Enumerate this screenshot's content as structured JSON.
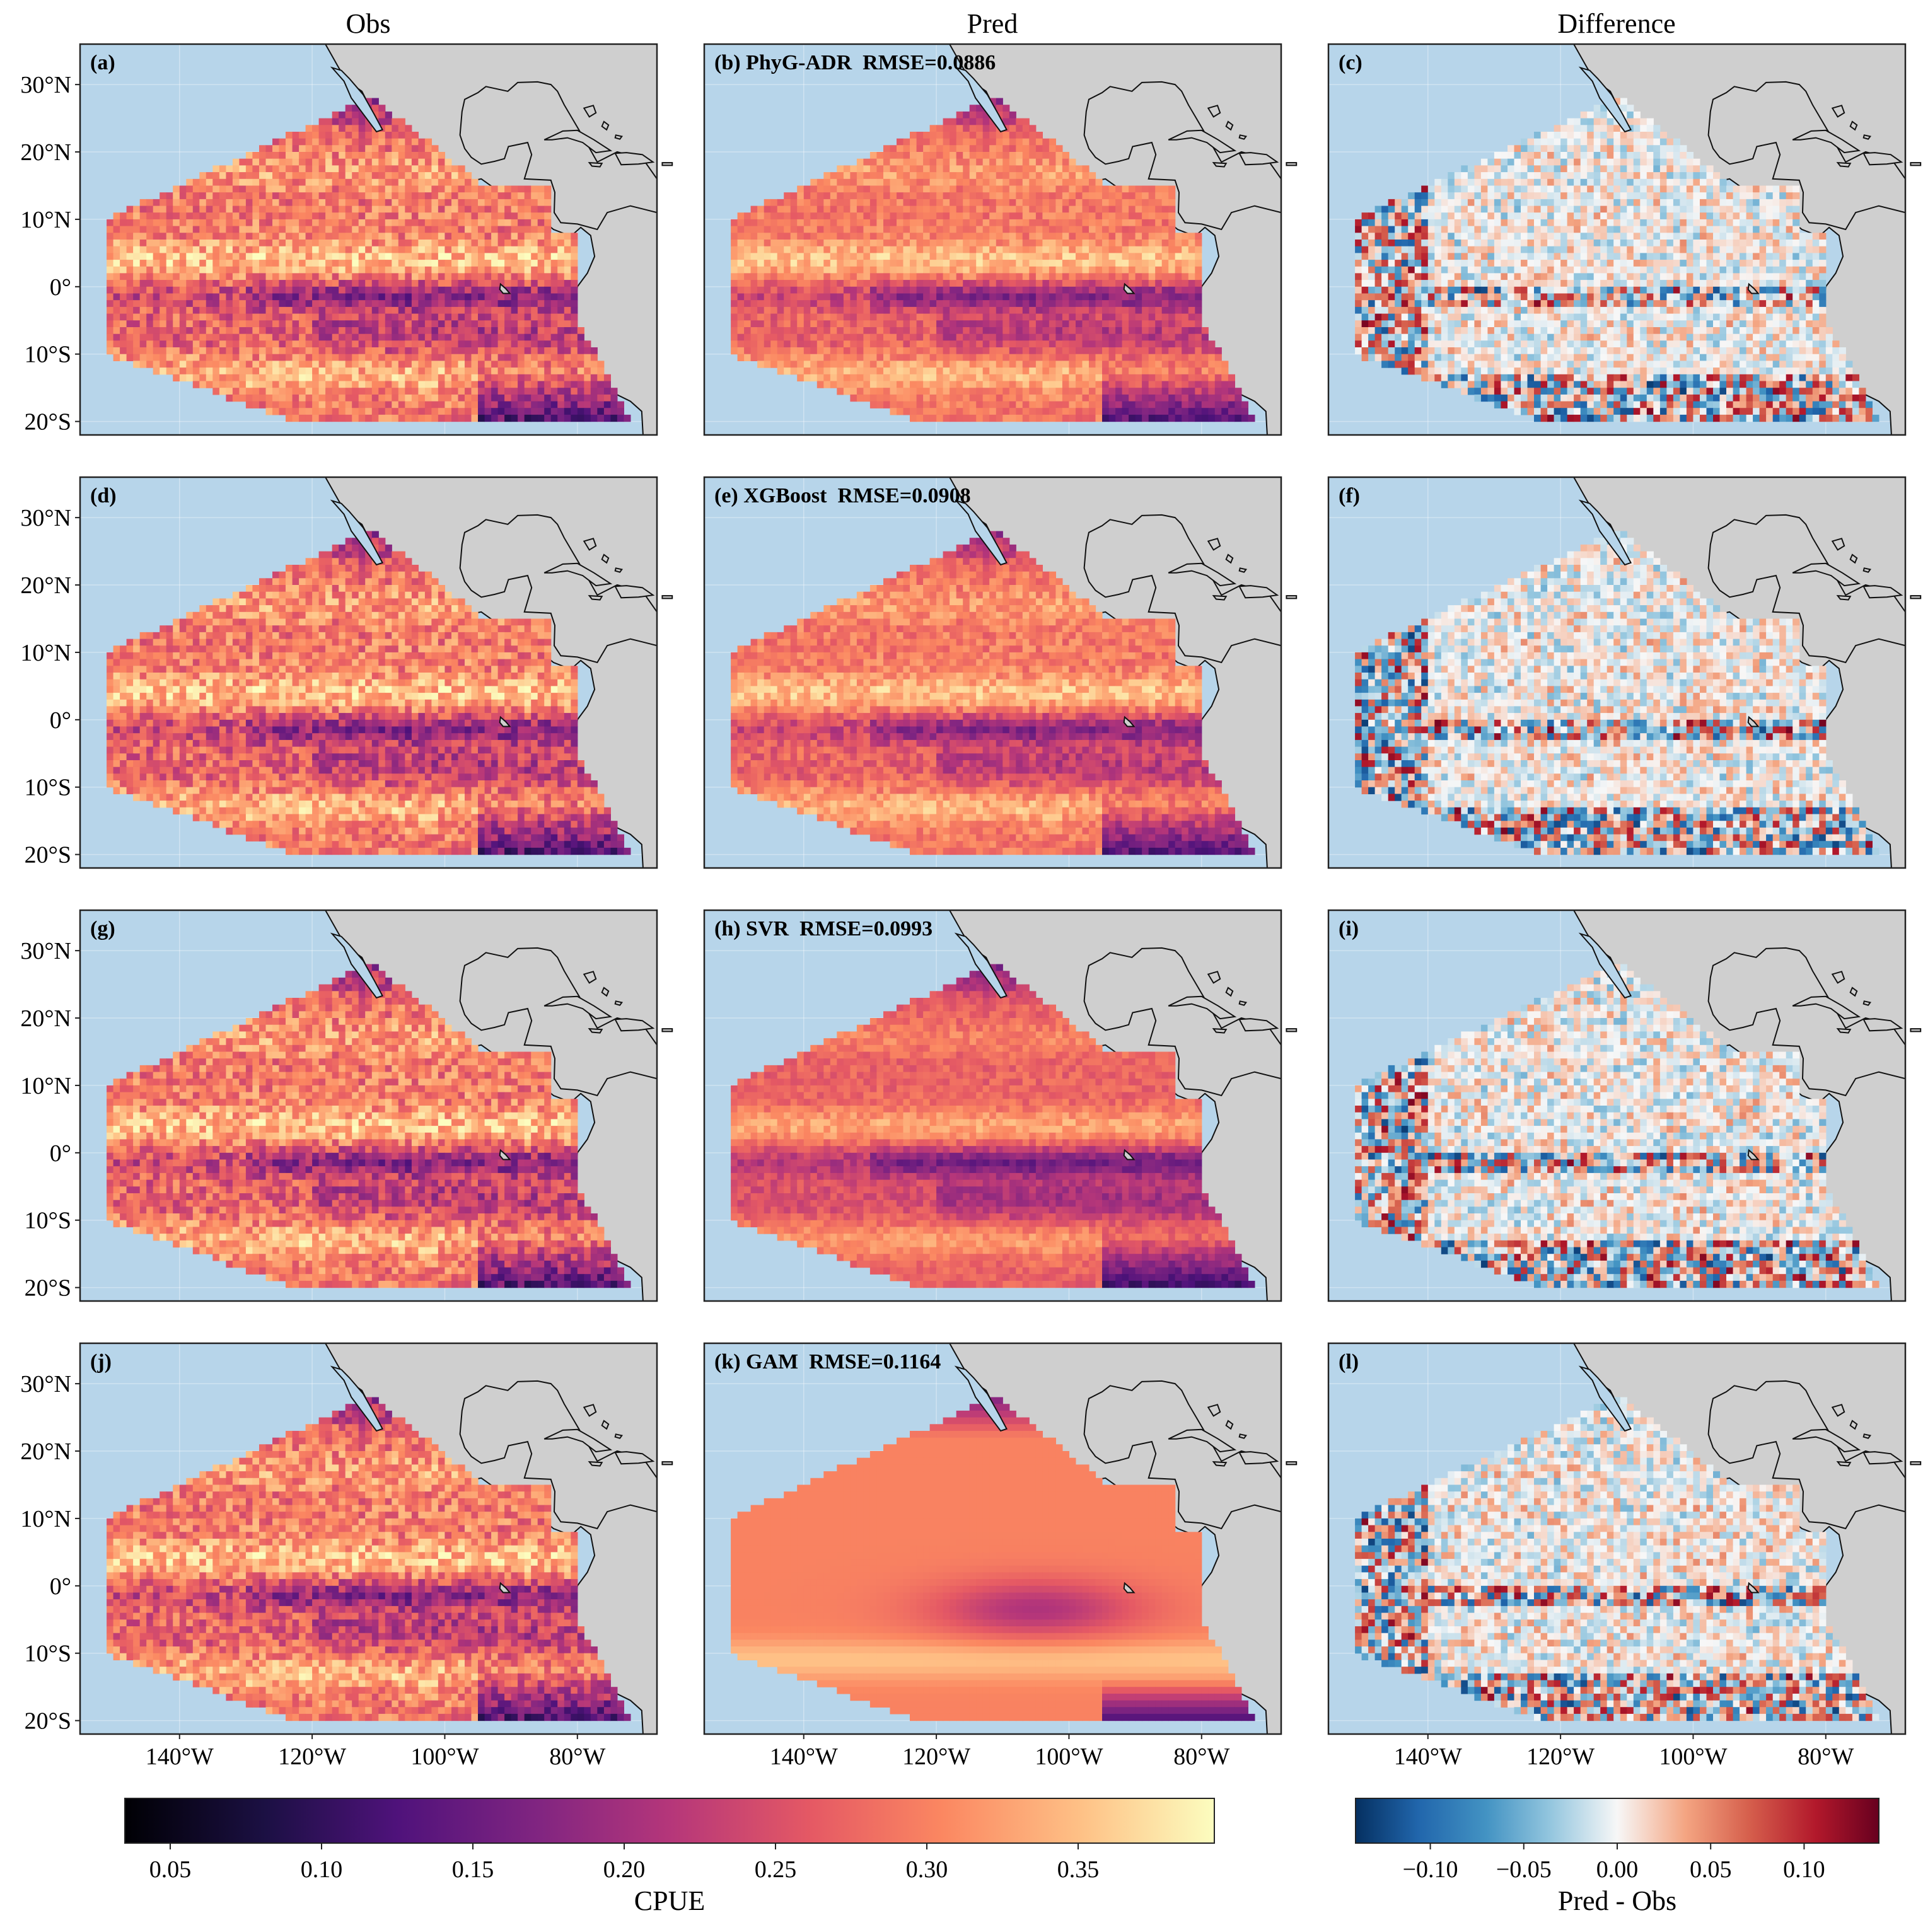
{
  "column_titles": [
    "Obs",
    "Pred",
    "Difference"
  ],
  "panels": [
    {
      "label": "(a)",
      "kind": "obs"
    },
    {
      "label": "(b) PhyG-ADR  RMSE=0.0886",
      "kind": "pred",
      "model": "PhyG-ADR",
      "rmse": 0.0886
    },
    {
      "label": "(c)",
      "kind": "diff"
    },
    {
      "label": "(d)",
      "kind": "obs"
    },
    {
      "label": "(e) XGBoost  RMSE=0.0908",
      "kind": "pred",
      "model": "XGBoost",
      "rmse": 0.0908
    },
    {
      "label": "(f)",
      "kind": "diff"
    },
    {
      "label": "(g)",
      "kind": "obs"
    },
    {
      "label": "(h) SVR  RMSE=0.0993",
      "kind": "pred",
      "model": "SVR",
      "rmse": 0.0993
    },
    {
      "label": "(i)",
      "kind": "diff"
    },
    {
      "label": "(j)",
      "kind": "obs"
    },
    {
      "label": "(k) GAM  RMSE=0.1164",
      "kind": "pred",
      "model": "GAM",
      "rmse": 0.1164
    },
    {
      "label": "(l)",
      "kind": "diff"
    }
  ],
  "lat_ticks": [
    "30°N",
    "20°N",
    "10°N",
    "0°",
    "10°S",
    "20°S"
  ],
  "lon_ticks": [
    "140°W",
    "120°W",
    "100°W",
    "80°W"
  ],
  "colorbars": [
    {
      "label": "CPUE",
      "ticks": [
        "0.05",
        "0.10",
        "0.15",
        "0.20",
        "0.25",
        "0.30",
        "0.35"
      ],
      "colormap": "magma"
    },
    {
      "label": "Pred - Obs",
      "ticks": [
        "−0.10",
        "−0.05",
        "0.00",
        "0.05",
        "0.10"
      ],
      "colormap": "RdBu_r"
    }
  ],
  "colors": {
    "ocean": "#b7d5ea",
    "land": "#cfcfcf"
  },
  "chart_data": {
    "type": "heatmap",
    "layout": "4 rows x 3 columns of maps",
    "map_extent": {
      "lon": [
        -155,
        -68
      ],
      "lat": [
        -22,
        36
      ]
    },
    "lat_tick_values": [
      30,
      20,
      10,
      0,
      -10,
      -20
    ],
    "lon_tick_values": [
      -140,
      -120,
      -100,
      -80
    ],
    "cpue_range": [
      0.035,
      0.395
    ],
    "cpue_tick_values": [
      0.05,
      0.1,
      0.15,
      0.2,
      0.25,
      0.3,
      0.35
    ],
    "diff_range": [
      -0.14,
      0.14
    ],
    "diff_tick_values": [
      -0.1,
      -0.05,
      0.0,
      0.05,
      0.1
    ],
    "rmse": {
      "PhyG-ADR": 0.0886,
      "XGBoost": 0.0908,
      "SVR": 0.0993,
      "GAM": 0.1164
    }
  }
}
